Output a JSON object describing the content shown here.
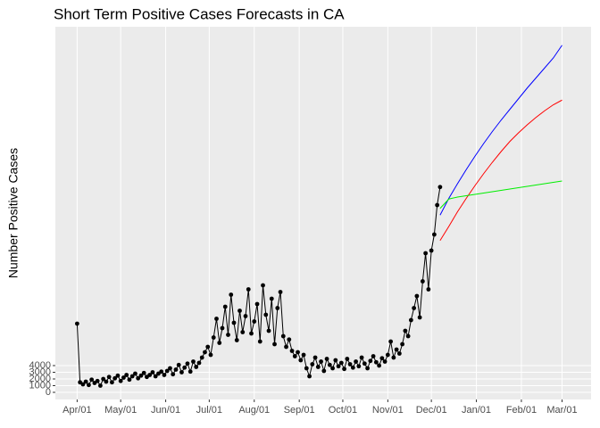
{
  "chart_data": {
    "type": "line",
    "title": "Short Term Positive Cases Forecasts in CA",
    "y_label": "Number Positive Cases",
    "xlim": [
      -15,
      354
    ],
    "xticks": [
      {
        "value": 0,
        "label": "Apr/01"
      },
      {
        "value": 30,
        "label": "May/01"
      },
      {
        "value": 61,
        "label": "Jun/01"
      },
      {
        "value": 91,
        "label": "Jul/01"
      },
      {
        "value": 122,
        "label": "Aug/01"
      },
      {
        "value": 153,
        "label": "Sep/01"
      },
      {
        "value": 183,
        "label": "Oct/01"
      },
      {
        "value": 214,
        "label": "Nov/01"
      },
      {
        "value": 244,
        "label": "Dec/01"
      },
      {
        "value": 275,
        "label": "Jan/01"
      },
      {
        "value": 306,
        "label": "Feb/01"
      },
      {
        "value": 334,
        "label": "Mar/01"
      }
    ],
    "ylim": [
      -1067,
      54667
    ],
    "yticks": [
      0,
      1000,
      2000,
      3000,
      4000
    ],
    "grid": true,
    "series": [
      {
        "color": "#000000",
        "markers": true,
        "x": [
          0,
          2,
          4,
          6,
          8,
          10,
          12,
          14,
          16,
          18,
          20,
          22,
          24,
          26,
          28,
          30,
          32,
          34,
          36,
          38,
          40,
          42,
          44,
          46,
          48,
          50,
          52,
          54,
          56,
          58,
          60,
          62,
          64,
          66,
          68,
          70,
          72,
          74,
          76,
          78,
          80,
          82,
          84,
          86,
          88,
          90,
          92,
          94,
          96,
          98,
          100,
          102,
          104,
          106,
          108,
          110,
          112,
          114,
          116,
          118,
          120,
          122,
          124,
          126,
          128,
          130,
          132,
          134,
          136,
          138,
          140,
          142,
          144,
          146,
          148,
          150,
          152,
          154,
          156,
          158,
          160,
          162,
          164,
          166,
          168,
          170,
          172,
          174,
          176,
          178,
          180,
          182,
          184,
          186,
          188,
          190,
          192,
          194,
          196,
          198,
          200,
          202,
          204,
          206,
          208,
          210,
          212,
          214,
          216,
          218,
          220,
          222,
          224,
          226,
          228,
          230,
          232,
          234,
          236,
          238,
          240,
          242,
          244,
          246,
          248,
          250
        ],
        "values": [
          10270,
          1500,
          1200,
          1600,
          1100,
          1900,
          1400,
          1700,
          1000,
          2000,
          1600,
          2300,
          1500,
          2100,
          2500,
          1700,
          2200,
          2600,
          1900,
          2400,
          2800,
          2100,
          2500,
          2900,
          2300,
          2600,
          3000,
          2400,
          2800,
          3100,
          2600,
          3200,
          3600,
          2700,
          3400,
          4100,
          3000,
          3700,
          4300,
          3100,
          4600,
          3800,
          4400,
          5200,
          6000,
          6800,
          5600,
          8200,
          11000,
          7400,
          9600,
          12800,
          8600,
          14600,
          10400,
          7800,
          12200,
          9000,
          11400,
          15400,
          8800,
          10600,
          13200,
          7600,
          16000,
          11600,
          9200,
          14000,
          7200,
          12600,
          15000,
          8400,
          6800,
          7900,
          6200,
          5400,
          6000,
          4800,
          5600,
          3600,
          2400,
          4200,
          5200,
          3800,
          4600,
          3200,
          5000,
          4100,
          3600,
          4800,
          3900,
          4400,
          3500,
          5000,
          4200,
          3700,
          4600,
          3900,
          5200,
          4300,
          3600,
          4700,
          5400,
          4500,
          4000,
          5100,
          4600,
          5600,
          7600,
          5200,
          6400,
          5800,
          7200,
          9200,
          8400,
          10800,
          12600,
          14400,
          11200,
          16600,
          20800,
          15400,
          21200,
          23600,
          28000,
          30700
        ]
      },
      {
        "color": "#0000ff",
        "markers": false,
        "x": [
          250,
          256,
          262,
          268,
          274,
          280,
          286,
          292,
          298,
          304,
          310,
          316,
          322,
          328,
          334
        ],
        "values": [
          26500,
          29000,
          31200,
          33300,
          35300,
          37200,
          39000,
          40700,
          42300,
          43900,
          45500,
          47000,
          48500,
          50000,
          51900
        ]
      },
      {
        "color": "#ff0000",
        "markers": false,
        "x": [
          250,
          256,
          262,
          268,
          274,
          280,
          286,
          292,
          298,
          304,
          310,
          316,
          322,
          328,
          334
        ],
        "values": [
          22700,
          24800,
          27000,
          29000,
          30900,
          32700,
          34400,
          36000,
          37500,
          38800,
          40000,
          41100,
          42100,
          43000,
          43700
        ]
      },
      {
        "color": "#00ee00",
        "markers": false,
        "x": [
          250,
          256,
          262,
          268,
          274,
          280,
          286,
          292,
          298,
          304,
          310,
          316,
          322,
          328,
          334
        ],
        "values": [
          27500,
          28900,
          29200,
          29400,
          29600,
          29800,
          30000,
          30200,
          30400,
          30600,
          30800,
          31000,
          31200,
          31400,
          31600
        ]
      }
    ]
  }
}
